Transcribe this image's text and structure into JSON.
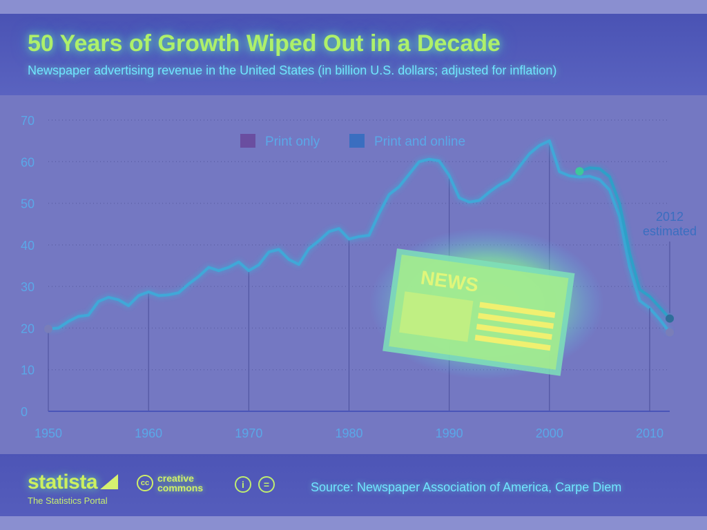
{
  "header": {
    "title": "50 Years of Growth Wiped Out in a Decade",
    "subtitle": "Newspaper advertising revenue in the United States (in billion U.S. dollars; adjusted for inflation)"
  },
  "footer": {
    "brand": "statista",
    "tagline": "The Statistics Portal",
    "cc_symbol": "cc",
    "cc_line1": "creative",
    "cc_line2": "commons",
    "by_icon": "i",
    "nd_icon": "=",
    "source": "Source: Newspaper Association of America, Carpe Diem"
  },
  "colors": {
    "line": "#3fa8d8",
    "axis_text": "#5aa8e8",
    "grid": "#5d61a8",
    "glow": "#aef06a"
  },
  "chart_data": {
    "type": "line",
    "title": "50 Years of Growth Wiped Out in a Decade",
    "subtitle": "Newspaper advertising revenue in the United States (in billion U.S. dollars; adjusted for inflation)",
    "xlabel": "",
    "ylabel": "",
    "xlim": [
      1950,
      2012
    ],
    "ylim": [
      0,
      70
    ],
    "x_ticks": [
      1950,
      1960,
      1970,
      1980,
      1990,
      2000,
      2010
    ],
    "y_ticks": [
      0,
      10,
      20,
      30,
      40,
      50,
      60,
      70
    ],
    "grid": true,
    "legend_position": "top-center",
    "annotation": {
      "text": [
        "2012",
        "estimated"
      ],
      "year": 2012
    },
    "series": [
      {
        "name": "Print only",
        "color": "#3fa8d8",
        "x": [
          1950,
          1951,
          1952,
          1953,
          1954,
          1955,
          1956,
          1957,
          1958,
          1959,
          1960,
          1961,
          1962,
          1963,
          1964,
          1965,
          1966,
          1967,
          1968,
          1969,
          1970,
          1971,
          1972,
          1973,
          1974,
          1975,
          1976,
          1977,
          1978,
          1979,
          1980,
          1981,
          1982,
          1983,
          1984,
          1985,
          1986,
          1987,
          1988,
          1989,
          1990,
          1991,
          1992,
          1993,
          1994,
          1995,
          1996,
          1997,
          1998,
          1999,
          2000,
          2001,
          2002,
          2003,
          2004,
          2005,
          2006,
          2007,
          2008,
          2009,
          2010,
          2011,
          2012
        ],
        "values": [
          19.8,
          20.0,
          21.6,
          22.8,
          23.1,
          26.4,
          27.4,
          26.8,
          25.4,
          27.8,
          28.7,
          27.8,
          28.0,
          28.5,
          30.6,
          32.4,
          34.6,
          33.8,
          34.6,
          35.9,
          33.8,
          35.2,
          38.3,
          38.9,
          36.5,
          35.3,
          39.1,
          41.0,
          43.2,
          43.9,
          41.4,
          42.0,
          42.3,
          47.5,
          52.1,
          54.0,
          57.0,
          60.0,
          60.6,
          60.2,
          56.7,
          51.3,
          50.3,
          50.7,
          52.7,
          54.4,
          55.7,
          58.8,
          61.9,
          63.9,
          65.0,
          57.6,
          56.6,
          56.3,
          56.5,
          55.7,
          53.2,
          46.8,
          34.7,
          26.6,
          24.8,
          22.1,
          19.0
        ]
      },
      {
        "name": "Print and online",
        "color": "#2ea0c8",
        "x": [
          2003,
          2004,
          2005,
          2006,
          2007,
          2008,
          2009,
          2010,
          2011,
          2012
        ],
        "values": [
          57.7,
          58.5,
          58.3,
          56.4,
          49.9,
          38.0,
          29.3,
          27.6,
          25.0,
          22.3
        ]
      }
    ]
  }
}
